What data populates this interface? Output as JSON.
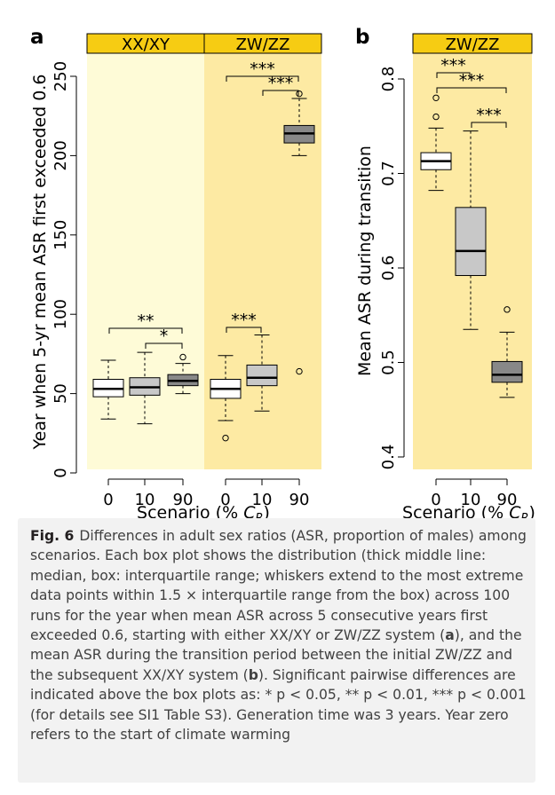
{
  "colors": {
    "xx_band": "#fefbd7",
    "zw_band": "#fdeaa3",
    "header": "#f6cc13",
    "box_0": "#ffffff",
    "box_10": "#c8c8c8",
    "box_90": "#888888"
  },
  "chart_data": [
    {
      "type": "box",
      "panel_label": "a",
      "ylabel": "Year when 5-yr mean ASR first exceeded 0.6",
      "xlabel": "Scenario (% C_R)",
      "ylim": [
        0,
        250
      ],
      "yticks": [
        0,
        50,
        100,
        150,
        200,
        250
      ],
      "groups": [
        {
          "system": "XX/XY",
          "boxes": [
            {
              "scenario": "0",
              "whisker_low": 34,
              "q1": 48,
              "median": 53,
              "q3": 59,
              "whisker_high": 71,
              "outliers": []
            },
            {
              "scenario": "10",
              "whisker_low": 31,
              "q1": 49,
              "median": 54,
              "q3": 60,
              "whisker_high": 76,
              "outliers": []
            },
            {
              "scenario": "90",
              "whisker_low": 50,
              "q1": 55,
              "median": 58,
              "q3": 62,
              "whisker_high": 69,
              "outliers": [
                73
              ]
            }
          ],
          "significance": [
            {
              "from": "0",
              "to": "90",
              "label": "**"
            },
            {
              "from": "10",
              "to": "90",
              "label": "*"
            }
          ]
        },
        {
          "system": "ZW/ZZ",
          "boxes": [
            {
              "scenario": "0",
              "whisker_low": 33,
              "q1": 47,
              "median": 53,
              "q3": 59,
              "whisker_high": 74,
              "outliers": [
                22
              ]
            },
            {
              "scenario": "10",
              "whisker_low": 39,
              "q1": 55,
              "median": 60,
              "q3": 68,
              "whisker_high": 87,
              "outliers": []
            },
            {
              "scenario": "90",
              "whisker_low": 200,
              "q1": 208,
              "median": 214,
              "q3": 219,
              "whisker_high": 236,
              "outliers": [
                239,
                64
              ]
            }
          ],
          "significance": [
            {
              "from": "0",
              "to": "10",
              "label": "***"
            },
            {
              "from": "0",
              "to": "90",
              "label": "***"
            },
            {
              "from": "10",
              "to": "90",
              "label": "***"
            }
          ]
        }
      ]
    },
    {
      "type": "box",
      "panel_label": "b",
      "ylabel": "Mean ASR during transition",
      "xlabel": "Scenario (% C_R)",
      "ylim": [
        0.4,
        0.8
      ],
      "yticks": [
        "0.4",
        "0.5",
        "0.6",
        "0.7",
        "0.8"
      ],
      "groups": [
        {
          "system": "ZW/ZZ",
          "boxes": [
            {
              "scenario": "0",
              "whisker_low": 0.682,
              "q1": 0.704,
              "median": 0.713,
              "q3": 0.722,
              "whisker_high": 0.748,
              "outliers": [
                0.76,
                0.78
              ]
            },
            {
              "scenario": "10",
              "whisker_low": 0.535,
              "q1": 0.592,
              "median": 0.618,
              "q3": 0.664,
              "whisker_high": 0.745,
              "outliers": []
            },
            {
              "scenario": "90",
              "whisker_low": 0.463,
              "q1": 0.479,
              "median": 0.487,
              "q3": 0.501,
              "whisker_high": 0.532,
              "outliers": [
                0.556
              ]
            }
          ],
          "significance": [
            {
              "from": "0",
              "to": "10",
              "label": "***"
            },
            {
              "from": "0",
              "to": "90",
              "label": "***"
            },
            {
              "from": "10",
              "to": "90",
              "label": "***"
            }
          ]
        }
      ]
    }
  ],
  "caption": {
    "fig_label": "Fig. 6",
    "text_1": "Differences in adult sex ratios (ASR, proportion of males) among scenarios. Each box plot shows the distribution (thick middle line: median, box: interquartile range; whiskers extend to the most extreme data points within 1.5 × interquartile range from the box) across 100 runs for the year when mean ASR across 5 consecutive years first exceeded 0.6, starting with either XX/XY or ZW/ZZ system (",
    "ref_a": "a",
    "text_2": "), and the mean ASR during the transition period between the initial ZW/ZZ and the subsequent XX/XY system (",
    "ref_b": "b",
    "text_3": "). Significant pairwise differences are indicated above the box plots as: * p < 0.05, ** p < 0.01, *** p < 0.001 (for details see SI1 Table S3). Generation time was 3 years. Year zero refers to the start of climate warming"
  }
}
